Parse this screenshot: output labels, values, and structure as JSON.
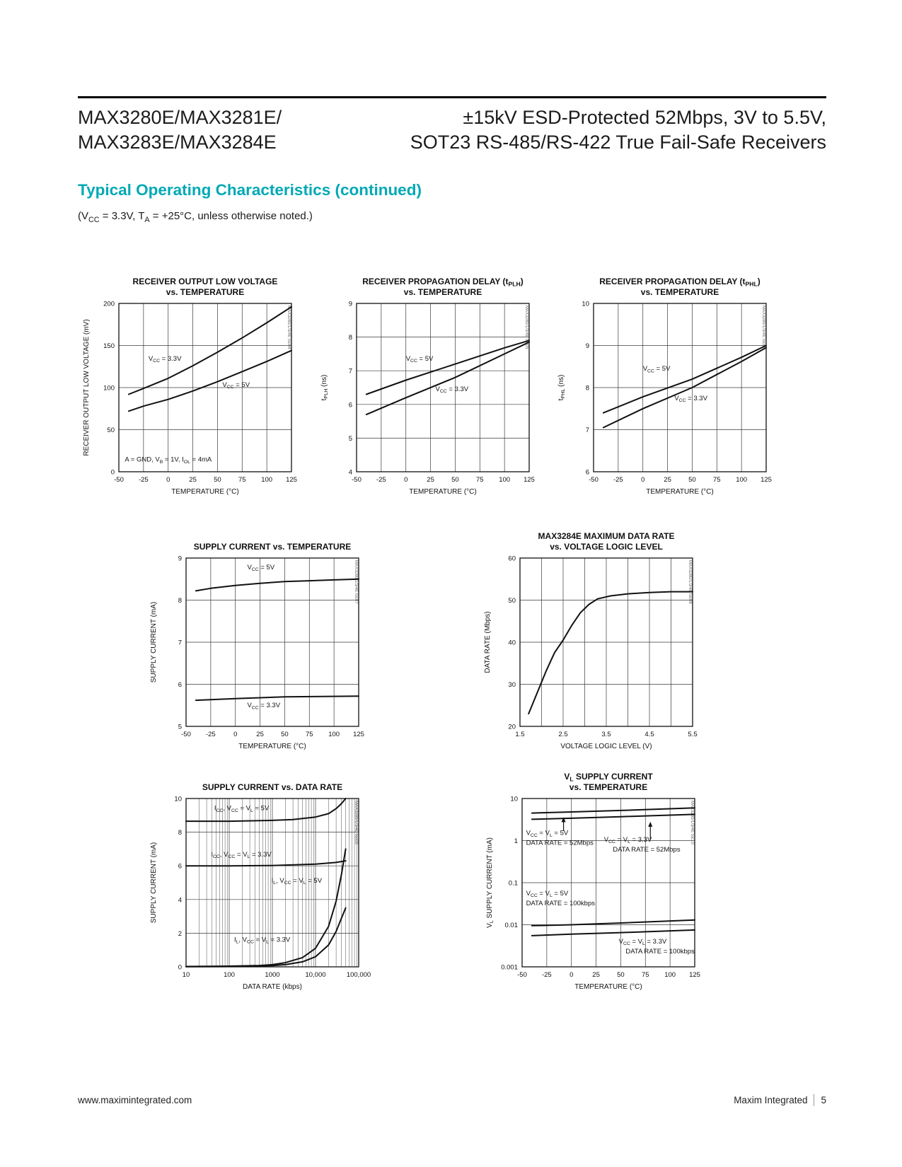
{
  "theme": {
    "accent": "#00a9b5",
    "text": "#111111",
    "grid": "#3a3a3a"
  },
  "header": {
    "part_lines": [
      "MAX3280E/MAX3281E/",
      "MAX3283E/MAX3284E"
    ],
    "title_lines": [
      "±15kV ESD-Protected 52Mbps, 3V to 5.5V,",
      "SOT23 RS-485/RS-422 True Fail-Safe Receivers"
    ]
  },
  "section": {
    "heading": "Typical Operating Characteristics (continued)",
    "conditions": "(V~CC~ = 3.3V, T~A~ = +25°C, unless otherwise noted.)"
  },
  "footer": {
    "url": "www.maximintegrated.com",
    "company": "Maxim Integrated",
    "page": "5"
  },
  "chart_data": [
    {
      "type": "line",
      "corner_label": "MAX3280/1/3/4E toc04",
      "title": [
        "RECEIVER OUTPUT LOW VOLTAGE",
        "vs. TEMPERATURE"
      ],
      "xlabel": "TEMPERATURE (°C)",
      "ylabel": "RECEIVER OUTPUT LOW VOLTAGE (mV)",
      "x": {
        "min": -50,
        "max": 125,
        "ticks": [
          -50,
          -25,
          0,
          25,
          50,
          75,
          100,
          125
        ]
      },
      "y": {
        "min": 0,
        "max": 200,
        "ticks": [
          0,
          50,
          100,
          150,
          200
        ]
      },
      "series": [
        {
          "label": "V~CC~ = 3.3V",
          "x": [
            -40,
            -25,
            0,
            25,
            50,
            75,
            100,
            125
          ],
          "y": [
            92,
            99,
            111,
            126,
            142,
            159,
            177,
            196
          ]
        },
        {
          "label": "V~CC~ = 5V",
          "x": [
            -40,
            -25,
            0,
            25,
            50,
            75,
            100,
            125
          ],
          "y": [
            72,
            78,
            86,
            96,
            107,
            119,
            131,
            144
          ]
        }
      ],
      "annotations": [
        {
          "text": "V~CC~ = 3.3V",
          "x": -20,
          "y": 132
        },
        {
          "text": "V~CC~ = 5V",
          "x": 55,
          "y": 101
        },
        {
          "text": "A = GND, V~B~ = 1V, I~OL~ = 4mA",
          "x": -44,
          "y": 12
        }
      ]
    },
    {
      "type": "line",
      "corner_label": "MAX3280/1/3/4E toc05",
      "title": [
        "RECEIVER PROPAGATION DELAY (t~PLH~)",
        "vs. TEMPERATURE"
      ],
      "xlabel": "TEMPERATURE (°C)",
      "ylabel": "t~PLH~ (ns)",
      "x": {
        "min": -50,
        "max": 125,
        "ticks": [
          -50,
          -25,
          0,
          25,
          50,
          75,
          100,
          125
        ]
      },
      "y": {
        "min": 4,
        "max": 9,
        "ticks": [
          4,
          5,
          6,
          7,
          8,
          9
        ]
      },
      "series": [
        {
          "label": "V~CC~ = 5V",
          "x": [
            -40,
            0,
            50,
            100,
            125
          ],
          "y": [
            6.3,
            6.72,
            7.2,
            7.68,
            7.9
          ]
        },
        {
          "label": "V~CC~ = 3.3V",
          "x": [
            -40,
            0,
            50,
            100,
            125
          ],
          "y": [
            5.7,
            6.2,
            6.8,
            7.5,
            7.85
          ]
        }
      ],
      "annotations": [
        {
          "text": "V~CC~ = 5V",
          "x": 0,
          "y": 7.3
        },
        {
          "text": "V~CC~ = 3.3V",
          "x": 30,
          "y": 6.4
        }
      ]
    },
    {
      "type": "line",
      "corner_label": "MAX3280/1/3/4E toc06",
      "title": [
        "RECEIVER PROPAGATION DELAY (t~PHL~)",
        "vs. TEMPERATURE"
      ],
      "xlabel": "TEMPERATURE (°C)",
      "ylabel": "t~PHL~ (ns)",
      "x": {
        "min": -50,
        "max": 125,
        "ticks": [
          -50,
          -25,
          0,
          25,
          50,
          75,
          100,
          125
        ]
      },
      "y": {
        "min": 6,
        "max": 10,
        "ticks": [
          6,
          7,
          8,
          9,
          10
        ]
      },
      "series": [
        {
          "label": "V~CC~ = 5V",
          "x": [
            -40,
            0,
            50,
            100,
            125
          ],
          "y": [
            7.4,
            7.78,
            8.2,
            8.72,
            9.0
          ]
        },
        {
          "label": "V~CC~ = 3.3V",
          "x": [
            -40,
            0,
            50,
            100,
            125
          ],
          "y": [
            7.05,
            7.5,
            8.0,
            8.62,
            8.95
          ]
        }
      ],
      "annotations": [
        {
          "text": "V~CC~ = 5V",
          "x": 0,
          "y": 8.4
        },
        {
          "text": "V~CC~ = 3.3V",
          "x": 32,
          "y": 7.7
        }
      ]
    },
    {
      "type": "line",
      "corner_label": "MAX3280/1/3/4E toc07",
      "title": [
        "SUPPLY CURRENT vs. TEMPERATURE"
      ],
      "xlabel": "TEMPERATURE (°C)",
      "ylabel": "SUPPLY CURRENT (mA)",
      "x": {
        "min": -50,
        "max": 125,
        "ticks": [
          -50,
          -25,
          0,
          25,
          50,
          75,
          100,
          125
        ]
      },
      "y": {
        "min": 5,
        "max": 9,
        "ticks": [
          5,
          6,
          7,
          8,
          9
        ]
      },
      "series": [
        {
          "label": "V~CC~ = 5V",
          "x": [
            -40,
            -25,
            0,
            25,
            50,
            75,
            100,
            125
          ],
          "y": [
            8.22,
            8.28,
            8.35,
            8.4,
            8.44,
            8.46,
            8.48,
            8.5
          ]
        },
        {
          "label": "V~CC~ = 3.3V",
          "x": [
            -40,
            0,
            50,
            125
          ],
          "y": [
            5.62,
            5.66,
            5.7,
            5.72
          ]
        }
      ],
      "annotations": [
        {
          "text": "V~CC~ = 5V",
          "x": 12,
          "y": 8.73
        },
        {
          "text": "V~CC~ = 3.3V",
          "x": 12,
          "y": 5.45
        }
      ]
    },
    {
      "type": "line",
      "corner_label": "MAX3280/1/3/4E toc08",
      "title": [
        "MAX3284E MAXIMUM DATA RATE",
        "vs. VOLTAGE LOGIC LEVEL"
      ],
      "xlabel": "VOLTAGE LOGIC LEVEL (V)",
      "ylabel": "DATA RATE (Mbps)",
      "x": {
        "min": 1.5,
        "max": 5.5,
        "ticks": [
          1.5,
          2.5,
          3.5,
          4.5,
          5.5
        ],
        "grid": [
          2,
          2.5,
          3,
          3.5,
          4,
          4.5,
          5
        ]
      },
      "y": {
        "min": 20,
        "max": 60,
        "ticks": [
          20,
          30,
          40,
          50,
          60
        ]
      },
      "series": [
        {
          "label": "maximum data rate",
          "x": [
            1.7,
            1.9,
            2.1,
            2.3,
            2.5,
            2.7,
            2.9,
            3.1,
            3.3,
            3.6,
            4.0,
            4.5,
            5.0,
            5.5
          ],
          "y": [
            23,
            28,
            33,
            37.5,
            40.5,
            44,
            47,
            49,
            50.3,
            51,
            51.5,
            51.8,
            52,
            52
          ]
        }
      ],
      "annotations": []
    },
    {
      "type": "line",
      "corner_label": "MAX3280/1/3/4E toc09",
      "title": [
        "SUPPLY CURRENT vs. DATA RATE"
      ],
      "xlabel": "DATA RATE (kbps)",
      "ylabel": "SUPPLY CURRENT (mA)",
      "x": {
        "min": 10,
        "max": 100000,
        "log": true,
        "minor_log": true,
        "ticks": [
          10,
          100,
          1000,
          10000,
          100000
        ],
        "tick_labels": [
          "10",
          "100",
          "1000",
          "10,000",
          "100,000"
        ]
      },
      "y": {
        "min": 0,
        "max": 10,
        "ticks": [
          0,
          2,
          4,
          6,
          8,
          10
        ]
      },
      "series": [
        {
          "label": "I~CC~, V~CC~ = V~L~ = 5V",
          "x": [
            10,
            100,
            1000,
            3000,
            10000,
            20000,
            30000,
            40000,
            50000
          ],
          "y": [
            8.65,
            8.65,
            8.7,
            8.75,
            8.9,
            9.1,
            9.4,
            9.7,
            10
          ]
        },
        {
          "label": "I~CC~, V~CC~ = V~L~ = 3.3V",
          "x": [
            10,
            100,
            1000,
            10000,
            30000,
            50000
          ],
          "y": [
            6.0,
            6.0,
            6.02,
            6.1,
            6.2,
            6.3
          ]
        },
        {
          "label": "I~L~, V~CC~ = V~L~ = 5V",
          "x": [
            10,
            100,
            500,
            1000,
            2000,
            5000,
            10000,
            20000,
            30000,
            40000,
            50000
          ],
          "y": [
            0.02,
            0.04,
            0.08,
            0.13,
            0.25,
            0.55,
            1.1,
            2.4,
            3.9,
            5.5,
            7.0
          ]
        },
        {
          "label": "I~L~, V~CC~ = V~L~ = 3.3V",
          "x": [
            10,
            100,
            1000,
            2000,
            5000,
            10000,
            20000,
            30000,
            40000,
            50000
          ],
          "y": [
            0.01,
            0.02,
            0.07,
            0.13,
            0.3,
            0.6,
            1.3,
            2.1,
            2.9,
            3.5
          ]
        }
      ],
      "annotations": [
        {
          "text": "I~CC~, V~CC~ = V~L~ = 5V",
          "x": 45,
          "y": 9.3
        },
        {
          "text": "I~CC~, V~CC~ = V~L~ = 3.3V",
          "x": 38,
          "y": 6.55
        },
        {
          "text": "I~L~, V~CC~ = V~L~ = 5V",
          "x": 950,
          "y": 5.0
        },
        {
          "text": "I~L~, V~CC~ = V~L~ = 3.3V",
          "x": 130,
          "y": 1.5
        }
      ]
    },
    {
      "type": "line",
      "corner_label": "MAX3280/1/3/4E toc10",
      "title": [
        "V~L~ SUPPLY CURRENT",
        "vs. TEMPERATURE"
      ],
      "xlabel": "TEMPERATURE (°C)",
      "ylabel": "V~L~ SUPPLY CURRENT (mA)",
      "x": {
        "min": -50,
        "max": 125,
        "ticks": [
          -50,
          -25,
          0,
          25,
          50,
          75,
          100,
          125
        ]
      },
      "y": {
        "min": 0.001,
        "max": 10,
        "log": true,
        "ticks": [
          0.001,
          0.01,
          0.1,
          1,
          10
        ],
        "tick_labels": [
          "0.001",
          "0.01",
          "0.1",
          "1",
          "10"
        ]
      },
      "series": [
        {
          "label": "V~CC~ = V~L~ = 5V, 52Mbps",
          "x": [
            -40,
            0,
            50,
            125
          ],
          "y": [
            4.5,
            4.8,
            5.2,
            6.0
          ]
        },
        {
          "label": "V~CC~ = V~L~ = 3.3V, 52Mbps",
          "x": [
            -40,
            0,
            50,
            125
          ],
          "y": [
            3.2,
            3.4,
            3.7,
            4.2
          ]
        },
        {
          "label": "V~CC~ = V~L~ = 5V, 100kbps",
          "x": [
            -40,
            0,
            50,
            125
          ],
          "y": [
            0.0095,
            0.01,
            0.011,
            0.013
          ]
        },
        {
          "label": "V~CC~ = V~L~ = 3.3V, 100kbps",
          "x": [
            -40,
            0,
            50,
            125
          ],
          "y": [
            0.0055,
            0.006,
            0.0065,
            0.0075
          ]
        }
      ],
      "annotations": [
        {
          "text": "V~CC~ = V~L~ = 5V",
          "x": -46,
          "y": 1.35
        },
        {
          "text": "DATA RATE = 52Mbps",
          "x": -46,
          "y": 0.8
        },
        {
          "text": "V~CC~ = V~L~ = 3.3V",
          "x": 33,
          "y": 0.95
        },
        {
          "text": "DATA RATE = 52Mbps",
          "x": 42,
          "y": 0.55
        },
        {
          "text": "V~CC~ = V~L~ = 5V",
          "x": -46,
          "y": 0.05
        },
        {
          "text": "DATA RATE = 100kbps",
          "x": -46,
          "y": 0.029
        },
        {
          "text": "V~CC~ = V~L~ = 3.3V",
          "x": 48,
          "y": 0.0036
        },
        {
          "text": "DATA RATE = 100kbps",
          "x": 55,
          "y": 0.0021
        }
      ],
      "arrows": [
        {
          "x": -8,
          "y1": 1.7,
          "y2": 3.6
        },
        {
          "x": 80,
          "y1": 1.05,
          "y2": 2.8
        }
      ]
    }
  ]
}
